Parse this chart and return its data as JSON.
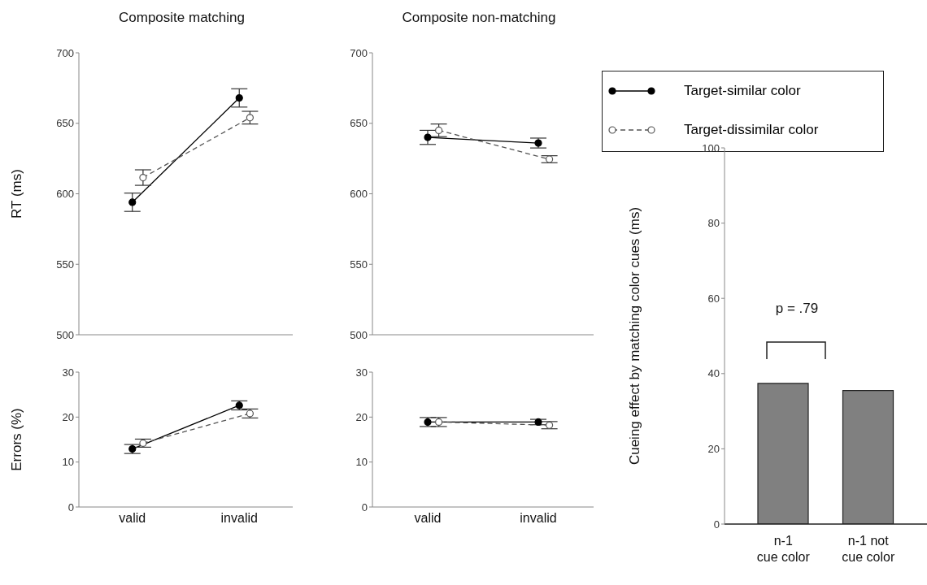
{
  "chart_data": [
    {
      "type": "line",
      "title": "Composite matching",
      "ylabel": "RT (ms)",
      "categories": [
        null,
        null
      ],
      "ylim": [
        500,
        700
      ],
      "yticks": [
        500,
        550,
        600,
        650,
        700
      ],
      "tick_labels": "y",
      "marker": "circle",
      "grid": false,
      "legend": false,
      "series": [
        {
          "color": "#000000",
          "line_style": "solid",
          "values": [
            594,
            668
          ],
          "errors": [
            6.5,
            6.5
          ]
        },
        {
          "color": "#555555",
          "line_style": "dashed",
          "values": [
            611.5,
            654
          ],
          "errors": [
            5.5,
            4.5
          ]
        }
      ]
    },
    {
      "type": "line",
      "title": "Composite non-matching",
      "categories": [
        null,
        null
      ],
      "ylim": [
        500,
        700
      ],
      "yticks": [
        500,
        550,
        600,
        650,
        700
      ],
      "tick_labels": "y",
      "marker": "circle",
      "grid": false,
      "legend": "top right",
      "series": [
        {
          "name": "Target-similar color",
          "color": "#000000",
          "line_style": "solid",
          "values": [
            640,
            636
          ],
          "errors": [
            5,
            3.5
          ]
        },
        {
          "name": "Target-dissimilar color",
          "color": "#555555",
          "line_style": "dashed",
          "values": [
            645,
            624.5
          ],
          "errors": [
            4.5,
            2.5
          ]
        }
      ]
    },
    {
      "type": "line",
      "ylabel": "Errors (%)",
      "categories": [
        "valid",
        "invalid"
      ],
      "ylim": [
        0,
        30
      ],
      "yticks": [
        0,
        10,
        20,
        30
      ],
      "marker": "circle",
      "grid": false,
      "legend": false,
      "series": [
        {
          "color": "#000000",
          "line_style": "solid",
          "values": [
            12.9,
            22.6
          ],
          "errors": [
            1,
            1
          ]
        },
        {
          "color": "#555555",
          "line_style": "dashed",
          "values": [
            14.2,
            20.8
          ],
          "errors": [
            0.9,
            1
          ]
        }
      ]
    },
    {
      "type": "line",
      "categories": [
        "valid",
        "invalid"
      ],
      "ylim": [
        0,
        30
      ],
      "yticks": [
        0,
        10,
        20,
        30
      ],
      "marker": "circle",
      "grid": false,
      "legend": false,
      "series": [
        {
          "color": "#000000",
          "line_style": "solid",
          "values": [
            18.9,
            18.9
          ],
          "errors": [
            1,
            0.6
          ]
        },
        {
          "color": "#555555",
          "line_style": "dashed",
          "values": [
            18.9,
            18.2
          ],
          "errors": [
            1,
            0.8
          ]
        }
      ]
    },
    {
      "type": "bar",
      "ylabel": "Cueing effect by matching color cues (ms)",
      "categories": [
        "n-1 cue color",
        "n-1 not cue color"
      ],
      "values": [
        37.4,
        35.5
      ],
      "color": "#808080",
      "ylim": [
        0,
        100
      ],
      "yticks": [
        0,
        20,
        40,
        60,
        80,
        100
      ],
      "grid": false,
      "legend": false,
      "annotations": [
        "p = .79"
      ]
    }
  ]
}
